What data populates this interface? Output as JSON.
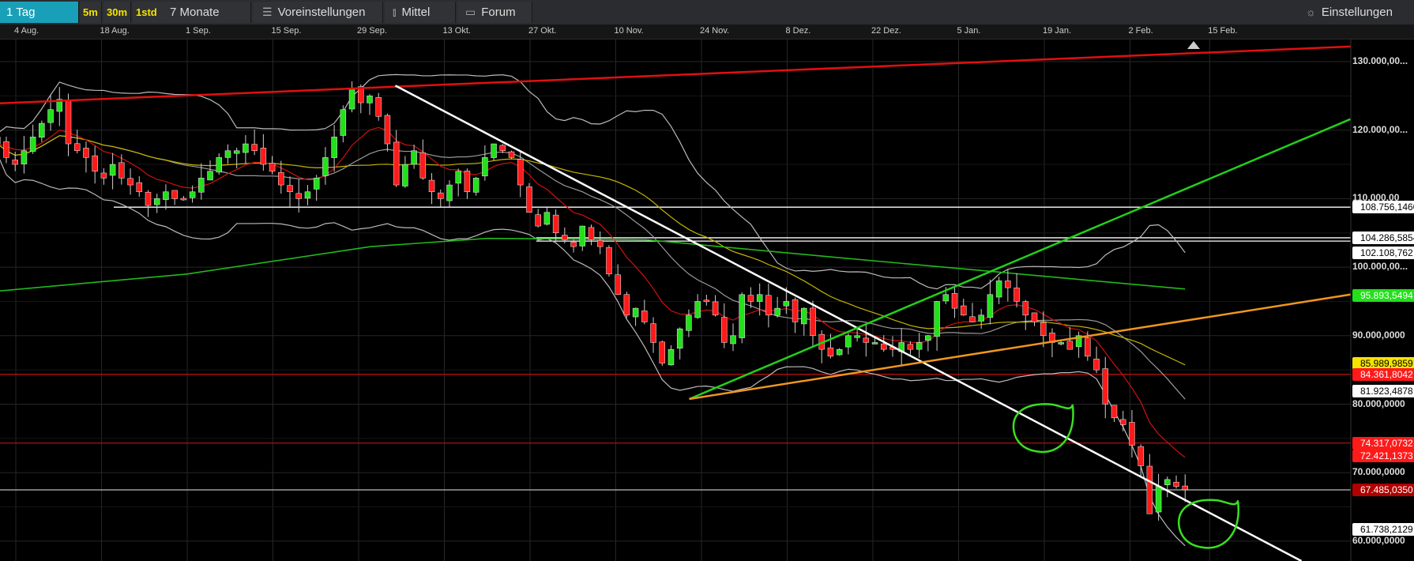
{
  "toolbar": {
    "timeframe": "1 Tag",
    "intraday": [
      "5m",
      "30m",
      "1std"
    ],
    "range": "7 Monate",
    "presets": "Voreinstellungen",
    "indicator": "Mittel",
    "forum": "Forum",
    "settings": "Einstellungen",
    "icons": {
      "presets": "sliders-icon",
      "indicator": "candlestick-icon",
      "forum": "speech-bubble-icon",
      "settings": "gear-icon"
    },
    "accent": "#19a0b8"
  },
  "chart_data": {
    "type": "candlestick",
    "x_ticks": [
      {
        "label": "4 Aug.",
        "date": "08-04"
      },
      {
        "label": "18 Aug.",
        "date": "08-18"
      },
      {
        "label": "1 Sep.",
        "date": "09-01"
      },
      {
        "label": "15 Sep.",
        "date": "09-15"
      },
      {
        "label": "29 Sep.",
        "date": "09-29"
      },
      {
        "label": "13 Okt.",
        "date": "10-13"
      },
      {
        "label": "27 Okt.",
        "date": "10-27"
      },
      {
        "label": "10 Nov.",
        "date": "11-10"
      },
      {
        "label": "24 Nov.",
        "date": "11-24"
      },
      {
        "label": "8 Dez.",
        "date": "12-08"
      },
      {
        "label": "22 Dez.",
        "date": "12-22"
      },
      {
        "label": "5 Jan.",
        "date": "01-05"
      },
      {
        "label": "19 Jan.",
        "date": "01-19"
      },
      {
        "label": "2 Feb.",
        "date": "02-02"
      },
      {
        "label": "15 Feb.",
        "date": "02-15"
      }
    ],
    "x_range": [
      "08-01",
      "03-10"
    ],
    "y_range": [
      58000,
      136000
    ],
    "y_ticks": [
      {
        "value": 130000,
        "label": "130.000,00..."
      },
      {
        "value": 120000,
        "label": "120.000,00..."
      },
      {
        "value": 110000,
        "label": "110.000,00"
      },
      {
        "value": 100000,
        "label": "100.000,00..."
      },
      {
        "value": 90000,
        "label": "90.000,0000"
      },
      {
        "value": 80000,
        "label": "80.000,0000"
      },
      {
        "value": 70000,
        "label": "70.000,0000"
      },
      {
        "value": 60000,
        "label": "60.000,0000"
      }
    ],
    "candles": {
      "first_date": "08-01",
      "last_date": "02-11",
      "close": [
        118,
        116,
        115,
        117,
        119,
        121,
        123,
        124.5,
        118,
        117,
        116,
        114,
        113,
        115,
        113,
        112,
        111,
        109,
        110,
        111,
        110,
        110,
        111,
        113,
        114,
        116,
        117,
        117,
        118,
        117,
        115,
        114,
        112,
        111,
        110,
        111,
        113,
        116,
        119,
        123,
        126,
        124,
        125,
        122,
        118,
        112,
        115,
        117,
        113,
        111,
        110,
        112,
        114,
        111,
        113,
        116,
        118,
        117,
        116,
        112,
        108,
        106,
        108,
        105,
        104,
        103,
        106,
        104,
        103,
        99,
        96,
        93,
        94,
        92,
        89,
        86,
        88,
        91,
        93,
        95,
        95,
        93,
        89,
        90,
        96,
        95,
        96,
        93,
        94,
        95,
        92,
        94,
        90,
        88,
        87,
        88,
        90,
        90,
        89,
        89,
        88,
        88,
        89,
        88,
        89,
        90,
        95,
        96,
        94,
        93,
        92,
        93,
        96,
        98,
        97,
        95,
        93,
        92,
        90,
        89,
        89,
        88,
        90,
        87,
        85,
        80,
        78,
        77,
        74,
        71,
        64,
        68,
        69,
        68,
        67.5
      ],
      "unit": 1000,
      "up_color": "#22e01a",
      "down_color": "#ff1a1a"
    },
    "moving_average_long": {
      "color": "#22b81a",
      "points": [
        [
          "08-01",
          96500
        ],
        [
          "09-01",
          99000
        ],
        [
          "10-01",
          103000
        ],
        [
          "10-20",
          104200
        ],
        [
          "11-15",
          104000
        ],
        [
          "12-15",
          101500
        ],
        [
          "01-15",
          99000
        ],
        [
          "02-11",
          96800
        ]
      ]
    },
    "trendlines": [
      {
        "color": "#e01010",
        "from": [
          "08-01",
          123900
        ],
        "to": [
          "03-10",
          132200
        ]
      },
      {
        "color": "#ffffff",
        "from": [
          "10-05",
          126500
        ],
        "to": [
          "03-02",
          57100
        ]
      },
      {
        "color": "#22d01a",
        "from": [
          "11-22",
          80750
        ],
        "to": [
          "03-10",
          121600
        ]
      },
      {
        "color": "#f0961e",
        "from": [
          "11-22",
          80750
        ],
        "to": [
          "03-10",
          96000
        ]
      }
    ],
    "horizontal_lines": [
      {
        "value": 108756.146,
        "color": "#ffffff",
        "from": "08-20"
      },
      {
        "value": 104286.5854,
        "color": "#ffffff",
        "from": "10-28"
      },
      {
        "value": 103800,
        "color": "#ffffff",
        "from": "10-28"
      },
      {
        "value": 84361.8042,
        "color": "#b01010",
        "from": "08-01"
      },
      {
        "value": 74317.0732,
        "color": "#b01010",
        "from": "08-01"
      },
      {
        "value": 67485.035,
        "color": "#bbbbbb",
        "from": "08-01"
      }
    ],
    "price_tags": [
      {
        "value": 108756.146,
        "label": "108.756,1460",
        "bg": "#ffffff",
        "fg": "#000000"
      },
      {
        "value": 104286.5854,
        "label": "104.286,5854",
        "bg": "#ffffff",
        "fg": "#000000"
      },
      {
        "value": 102108.762,
        "label": "102.108,762",
        "bg": "#ffffff",
        "fg": "#000000"
      },
      {
        "value": 95893.5494,
        "label": "95.893,5494",
        "bg": "#22e01a",
        "fg": "#ffffff"
      },
      {
        "value": 85989.9859,
        "label": "85.989,9859",
        "bg": "#f5e400",
        "fg": "#000000"
      },
      {
        "value": 84361.8042,
        "label": "84.361,8042",
        "bg": "#ff1a1a",
        "fg": "#ffffff"
      },
      {
        "value": 81923.4878,
        "label": "81.923,4878",
        "bg": "#ffffff",
        "fg": "#000000"
      },
      {
        "value": 74317.0732,
        "label": "74.317,0732",
        "bg": "#ff1a1a",
        "fg": "#ffffff"
      },
      {
        "value": 72421.1373,
        "label": "72.421,1373",
        "bg": "#ff1a1a",
        "fg": "#ffffff"
      },
      {
        "value": 67485.035,
        "label": "67.485,0350",
        "bg": "#b00000",
        "fg": "#ffffff"
      },
      {
        "value": 61738.2129,
        "label": "61.738,2129",
        "bg": "#ffffff",
        "fg": "#000000"
      }
    ],
    "annotations": [
      {
        "type": "hand-drawn-circle",
        "color": "#39e020",
        "center": [
          "01-19",
          76500
        ]
      },
      {
        "type": "hand-drawn-circle",
        "color": "#39e020",
        "center": [
          "02-15",
          62500
        ]
      }
    ]
  }
}
